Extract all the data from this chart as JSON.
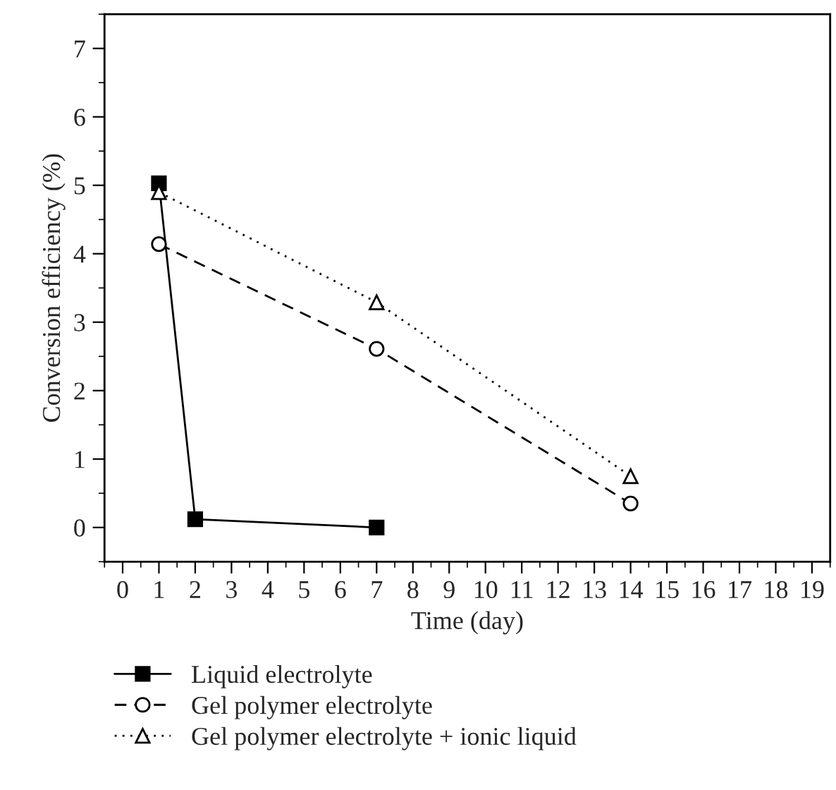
{
  "chart_data": {
    "type": "line",
    "xlabel": "Time (day)",
    "ylabel": "Conversion efficiency (%)",
    "xlim": [
      -0.5,
      19.5
    ],
    "ylim": [
      -0.5,
      7.5
    ],
    "xticks": [
      0,
      1,
      2,
      3,
      4,
      5,
      6,
      7,
      8,
      9,
      10,
      11,
      12,
      13,
      14,
      15,
      16,
      17,
      18,
      19
    ],
    "yticks": [
      0,
      1,
      2,
      3,
      4,
      5,
      6,
      7
    ],
    "grid": false,
    "legend": "bottom",
    "series": [
      {
        "name": "Liquid electrolyte",
        "color": "#000000",
        "x": [
          1,
          2,
          7
        ],
        "values": [
          5.03,
          0.12,
          0.0
        ],
        "marker": "square",
        "line_style": "solid"
      },
      {
        "name": "Gel polymer electrolyte",
        "color": "#000000",
        "x": [
          1,
          7,
          14
        ],
        "values": [
          4.14,
          2.61,
          0.35
        ],
        "marker": "circle",
        "line_style": "dashed"
      },
      {
        "name": "Gel polymer electrolyte + ionic liquid",
        "color": "#000000",
        "x": [
          1,
          7,
          14
        ],
        "values": [
          4.9,
          3.29,
          0.75
        ],
        "marker": "triangle",
        "line_style": "dotted"
      }
    ]
  }
}
